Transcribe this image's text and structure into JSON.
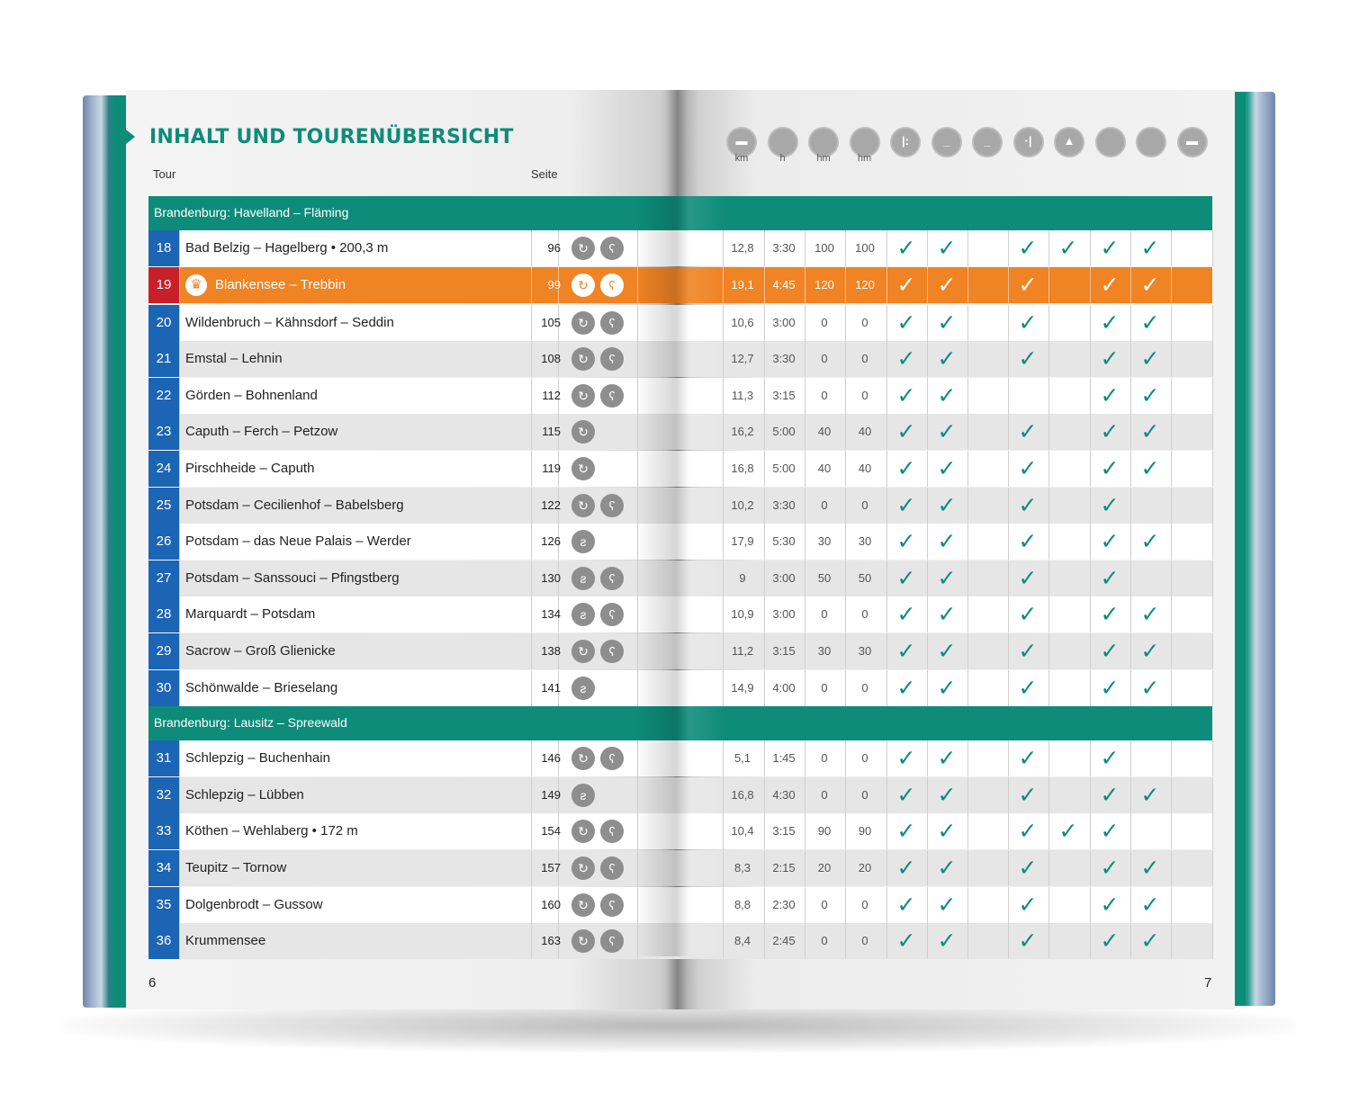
{
  "title": "INHALT UND TOURENÜBERSICHT",
  "header": {
    "tour_label": "Tour",
    "seite_label": "Seite",
    "units": [
      "km",
      "h",
      "hm",
      "hm"
    ],
    "icon_glyphs": [
      "▬",
      "",
      "",
      "",
      "|:",
      "_",
      "_",
      "·|",
      "▲",
      "",
      "",
      "▬"
    ]
  },
  "colors": {
    "accent_teal": "#0e8c7a",
    "tour_number_blue": "#1c64b4",
    "highlight_orange": "#f08324",
    "highlight_number_red": "#c8202a",
    "icon_gray": "#8e8e8e"
  },
  "sections": [
    {
      "label": "Brandenburg: Havelland – Fläming",
      "tours": [
        {
          "num": "18",
          "name": "Bad Belzig – Hagelberg • 200,3 m",
          "seite": "96",
          "icons": [
            "circle-arrow-icon",
            "bear-face-icon"
          ],
          "km": "12,8",
          "h": "3:30",
          "hm1": "100",
          "hm2": "100",
          "checks": [
            true,
            true,
            false,
            true,
            true,
            true,
            true,
            false
          ]
        },
        {
          "num": "19",
          "name": "Blankensee – Trebbin",
          "seite": "99",
          "icons": [
            "circle-arrow-icon",
            "bear-face-icon"
          ],
          "km": "19,1",
          "h": "4:45",
          "hm1": "120",
          "hm2": "120",
          "checks": [
            true,
            true,
            false,
            true,
            false,
            true,
            true,
            false
          ],
          "highlight": true
        },
        {
          "num": "20",
          "name": "Wildenbruch – Kähnsdorf – Seddin",
          "seite": "105",
          "icons": [
            "circle-arrow-icon",
            "bear-face-icon"
          ],
          "km": "10,6",
          "h": "3:00",
          "hm1": "0",
          "hm2": "0",
          "checks": [
            true,
            true,
            false,
            true,
            false,
            true,
            true,
            false
          ]
        },
        {
          "num": "21",
          "name": "Emstal – Lehnin",
          "seite": "108",
          "icons": [
            "circle-arrow-icon",
            "bear-face-icon"
          ],
          "km": "12,7",
          "h": "3:30",
          "hm1": "0",
          "hm2": "0",
          "checks": [
            true,
            true,
            false,
            true,
            false,
            true,
            true,
            false
          ]
        },
        {
          "num": "22",
          "name": "Görden – Bohnenland",
          "seite": "112",
          "icons": [
            "circle-arrow-icon",
            "bear-face-icon"
          ],
          "km": "11,3",
          "h": "3:15",
          "hm1": "0",
          "hm2": "0",
          "checks": [
            true,
            true,
            false,
            false,
            false,
            true,
            true,
            false
          ]
        },
        {
          "num": "23",
          "name": "Caputh – Ferch – Petzow",
          "seite": "115",
          "icons": [
            "circle-arrow-icon"
          ],
          "km": "16,2",
          "h": "5:00",
          "hm1": "40",
          "hm2": "40",
          "checks": [
            true,
            true,
            false,
            true,
            false,
            true,
            true,
            false
          ]
        },
        {
          "num": "24",
          "name": "Pirschheide – Caputh",
          "seite": "119",
          "icons": [
            "circle-arrow-icon"
          ],
          "km": "16,8",
          "h": "5:00",
          "hm1": "40",
          "hm2": "40",
          "checks": [
            true,
            true,
            false,
            true,
            false,
            true,
            true,
            false
          ]
        },
        {
          "num": "25",
          "name": "Potsdam – Cecilienhof – Babelsberg",
          "seite": "122",
          "icons": [
            "circle-arrow-icon",
            "bear-face-icon"
          ],
          "km": "10,2",
          "h": "3:30",
          "hm1": "0",
          "hm2": "0",
          "checks": [
            true,
            true,
            false,
            true,
            false,
            true,
            false,
            false
          ]
        },
        {
          "num": "26",
          "name": "Potsdam – das Neue Palais – Werder",
          "seite": "126",
          "icons": [
            "path-icon"
          ],
          "km": "17,9",
          "h": "5:30",
          "hm1": "30",
          "hm2": "30",
          "checks": [
            true,
            true,
            false,
            true,
            false,
            true,
            true,
            false
          ]
        },
        {
          "num": "27",
          "name": "Potsdam – Sanssouci – Pfingstberg",
          "seite": "130",
          "icons": [
            "path-icon",
            "bear-face-icon"
          ],
          "km": "9",
          "h": "3:00",
          "hm1": "50",
          "hm2": "50",
          "checks": [
            true,
            true,
            false,
            true,
            false,
            true,
            false,
            false
          ]
        },
        {
          "num": "28",
          "name": "Marquardt – Potsdam",
          "seite": "134",
          "icons": [
            "path-icon",
            "bear-face-icon"
          ],
          "km": "10,9",
          "h": "3:00",
          "hm1": "0",
          "hm2": "0",
          "checks": [
            true,
            true,
            false,
            true,
            false,
            true,
            true,
            false
          ]
        },
        {
          "num": "29",
          "name": "Sacrow – Groß Glienicke",
          "seite": "138",
          "icons": [
            "circle-arrow-icon",
            "bear-face-icon"
          ],
          "km": "11,2",
          "h": "3:15",
          "hm1": "30",
          "hm2": "30",
          "checks": [
            true,
            true,
            false,
            true,
            false,
            true,
            true,
            false
          ]
        },
        {
          "num": "30",
          "name": "Schönwalde – Brieselang",
          "seite": "141",
          "icons": [
            "path-icon"
          ],
          "km": "14,9",
          "h": "4:00",
          "hm1": "0",
          "hm2": "0",
          "checks": [
            true,
            true,
            false,
            true,
            false,
            true,
            true,
            false
          ]
        }
      ]
    },
    {
      "label": "Brandenburg: Lausitz – Spreewald",
      "tours": [
        {
          "num": "31",
          "name": "Schlepzig – Buchenhain",
          "seite": "146",
          "icons": [
            "circle-arrow-icon",
            "bear-face-icon"
          ],
          "km": "5,1",
          "h": "1:45",
          "hm1": "0",
          "hm2": "0",
          "checks": [
            true,
            true,
            false,
            true,
            false,
            true,
            false,
            false
          ]
        },
        {
          "num": "32",
          "name": "Schlepzig – Lübben",
          "seite": "149",
          "icons": [
            "path-icon"
          ],
          "km": "16,8",
          "h": "4:30",
          "hm1": "0",
          "hm2": "0",
          "checks": [
            true,
            true,
            false,
            true,
            false,
            true,
            true,
            false
          ]
        },
        {
          "num": "33",
          "name": "Köthen – Wehlaberg • 172 m",
          "seite": "154",
          "icons": [
            "circle-arrow-icon",
            "bear-face-icon"
          ],
          "km": "10,4",
          "h": "3:15",
          "hm1": "90",
          "hm2": "90",
          "checks": [
            true,
            true,
            false,
            true,
            true,
            true,
            false,
            false
          ]
        },
        {
          "num": "34",
          "name": "Teupitz – Tornow",
          "seite": "157",
          "icons": [
            "circle-arrow-icon",
            "bear-face-icon"
          ],
          "km": "8,3",
          "h": "2:15",
          "hm1": "20",
          "hm2": "20",
          "checks": [
            true,
            true,
            false,
            true,
            false,
            true,
            true,
            false
          ]
        },
        {
          "num": "35",
          "name": "Dolgenbrodt – Gussow",
          "seite": "160",
          "icons": [
            "circle-arrow-icon",
            "bear-face-icon"
          ],
          "km": "8,8",
          "h": "2:30",
          "hm1": "0",
          "hm2": "0",
          "checks": [
            true,
            true,
            false,
            true,
            false,
            true,
            true,
            false
          ]
        },
        {
          "num": "36",
          "name": "Krummensee",
          "seite": "163",
          "icons": [
            "circle-arrow-icon",
            "bear-face-icon"
          ],
          "km": "8,4",
          "h": "2:45",
          "hm1": "0",
          "hm2": "0",
          "checks": [
            true,
            true,
            false,
            true,
            false,
            true,
            true,
            false
          ]
        }
      ]
    }
  ],
  "folio": {
    "left": "6",
    "right": "7"
  }
}
